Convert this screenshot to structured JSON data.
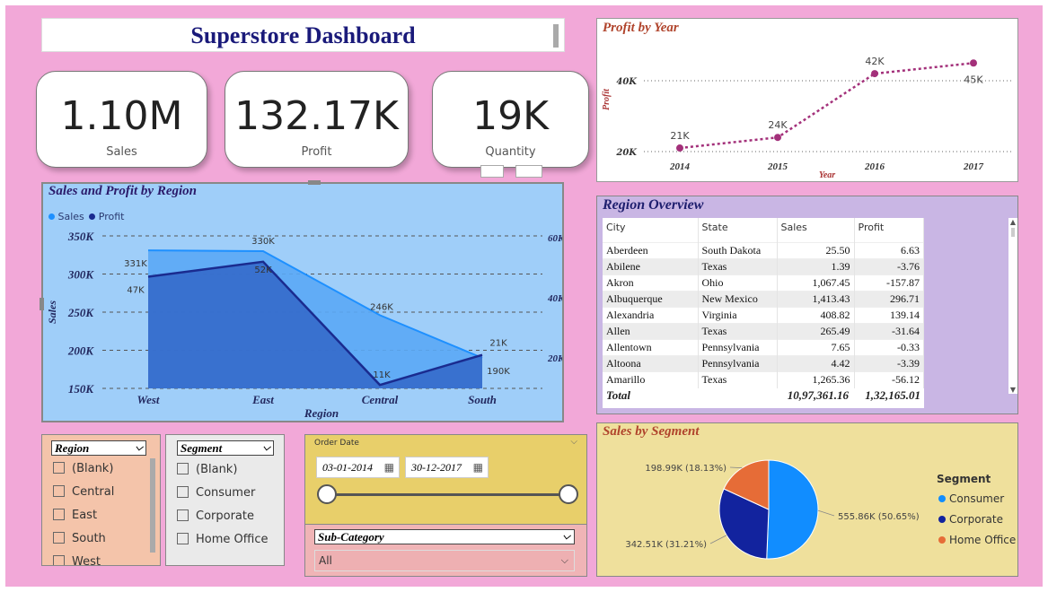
{
  "title": "Superstore Dashboard",
  "kpis": [
    {
      "value": "1.10M",
      "label": "Sales"
    },
    {
      "value": "132.17K",
      "label": "Profit"
    },
    {
      "value": "19K",
      "label": "Quantity"
    }
  ],
  "profit_by_year": {
    "title": "Profit by Year",
    "ylabel": "Profit",
    "xlabel": "Year",
    "y_ticks": [
      "40K",
      "20K"
    ]
  },
  "sales_profit_region": {
    "title": "Sales and Profit by Region",
    "legend": [
      "Sales",
      "Profit"
    ],
    "ylabel_left": "Sales",
    "ylabel_right": "Profit",
    "xlabel": "Region",
    "left_ticks": [
      "350K",
      "300K",
      "250K",
      "200K",
      "150K"
    ],
    "right_ticks": [
      "60K",
      "40K",
      "20K"
    ]
  },
  "region_overview": {
    "title": "Region Overview",
    "columns": [
      "City",
      "State",
      "Sales",
      "Profit"
    ],
    "rows": [
      [
        "Aberdeen",
        "South Dakota",
        "25.50",
        "6.63"
      ],
      [
        "Abilene",
        "Texas",
        "1.39",
        "-3.76"
      ],
      [
        "Akron",
        "Ohio",
        "1,067.45",
        "-157.87"
      ],
      [
        "Albuquerque",
        "New Mexico",
        "1,413.43",
        "296.71"
      ],
      [
        "Alexandria",
        "Virginia",
        "408.82",
        "139.14"
      ],
      [
        "Allen",
        "Texas",
        "265.49",
        "-31.64"
      ],
      [
        "Allentown",
        "Pennsylvania",
        "7.65",
        "-0.33"
      ],
      [
        "Altoona",
        "Pennsylvania",
        "4.42",
        "-3.39"
      ],
      [
        "Amarillo",
        "Texas",
        "1,265.36",
        "-56.12"
      ]
    ],
    "total_label": "Total",
    "total_sales": "10,97,361.16",
    "total_profit": "1,32,165.01"
  },
  "sales_by_segment": {
    "title": "Sales by Segment",
    "legend_title": "Segment"
  },
  "region_slicer": {
    "header": "Region",
    "items": [
      "(Blank)",
      "Central",
      "East",
      "South",
      "West"
    ]
  },
  "segment_slicer": {
    "header": "Segment",
    "items": [
      "(Blank)",
      "Consumer",
      "Corporate",
      "Home Office"
    ]
  },
  "date_slicer": {
    "label": "Order Date",
    "start": "03-01-2014",
    "end": "30-12-2017"
  },
  "subcategory_slicer": {
    "header": "Sub-Category",
    "value": "All"
  },
  "chart_data": [
    {
      "type": "line",
      "title": "Profit by Year",
      "xlabel": "Year",
      "ylabel": "Profit",
      "x": [
        "2014",
        "2015",
        "2016",
        "2017"
      ],
      "series": [
        {
          "values": [
            21000,
            24000,
            42000,
            45000
          ]
        }
      ],
      "data_labels": [
        "21K",
        "24K",
        "42K",
        "45K"
      ],
      "ylim": [
        20000,
        46000
      ],
      "color": "#a3307a"
    },
    {
      "type": "area",
      "title": "Sales and Profit by Region",
      "xlabel": "Region",
      "categories": [
        "West",
        "East",
        "Central",
        "South"
      ],
      "series": [
        {
          "name": "Sales",
          "values": [
            331000,
            330000,
            246000,
            190000
          ],
          "labels": [
            "331K",
            "330K",
            "246K",
            "190K"
          ],
          "axis": "left",
          "color": "#1e90ff"
        },
        {
          "name": "Profit",
          "values": [
            47000,
            52000,
            11000,
            21000
          ],
          "labels": [
            "47K",
            "52K",
            "11K",
            "21K"
          ],
          "axis": "right",
          "color": "#1a2b8f"
        }
      ],
      "ylim_left": [
        150000,
        350000
      ],
      "ylim_right": [
        10000,
        60000
      ]
    },
    {
      "type": "pie",
      "title": "Sales by Segment",
      "legend_title": "Segment",
      "categories": [
        "Consumer",
        "Corporate",
        "Home Office"
      ],
      "values": [
        555.86,
        342.51,
        198.99
      ],
      "labels": [
        "555.86K (50.65%)",
        "342.51K (31.21%)",
        "198.99K (18.13%)"
      ],
      "colors": [
        "#118dff",
        "#12239e",
        "#e66c37"
      ]
    }
  ]
}
